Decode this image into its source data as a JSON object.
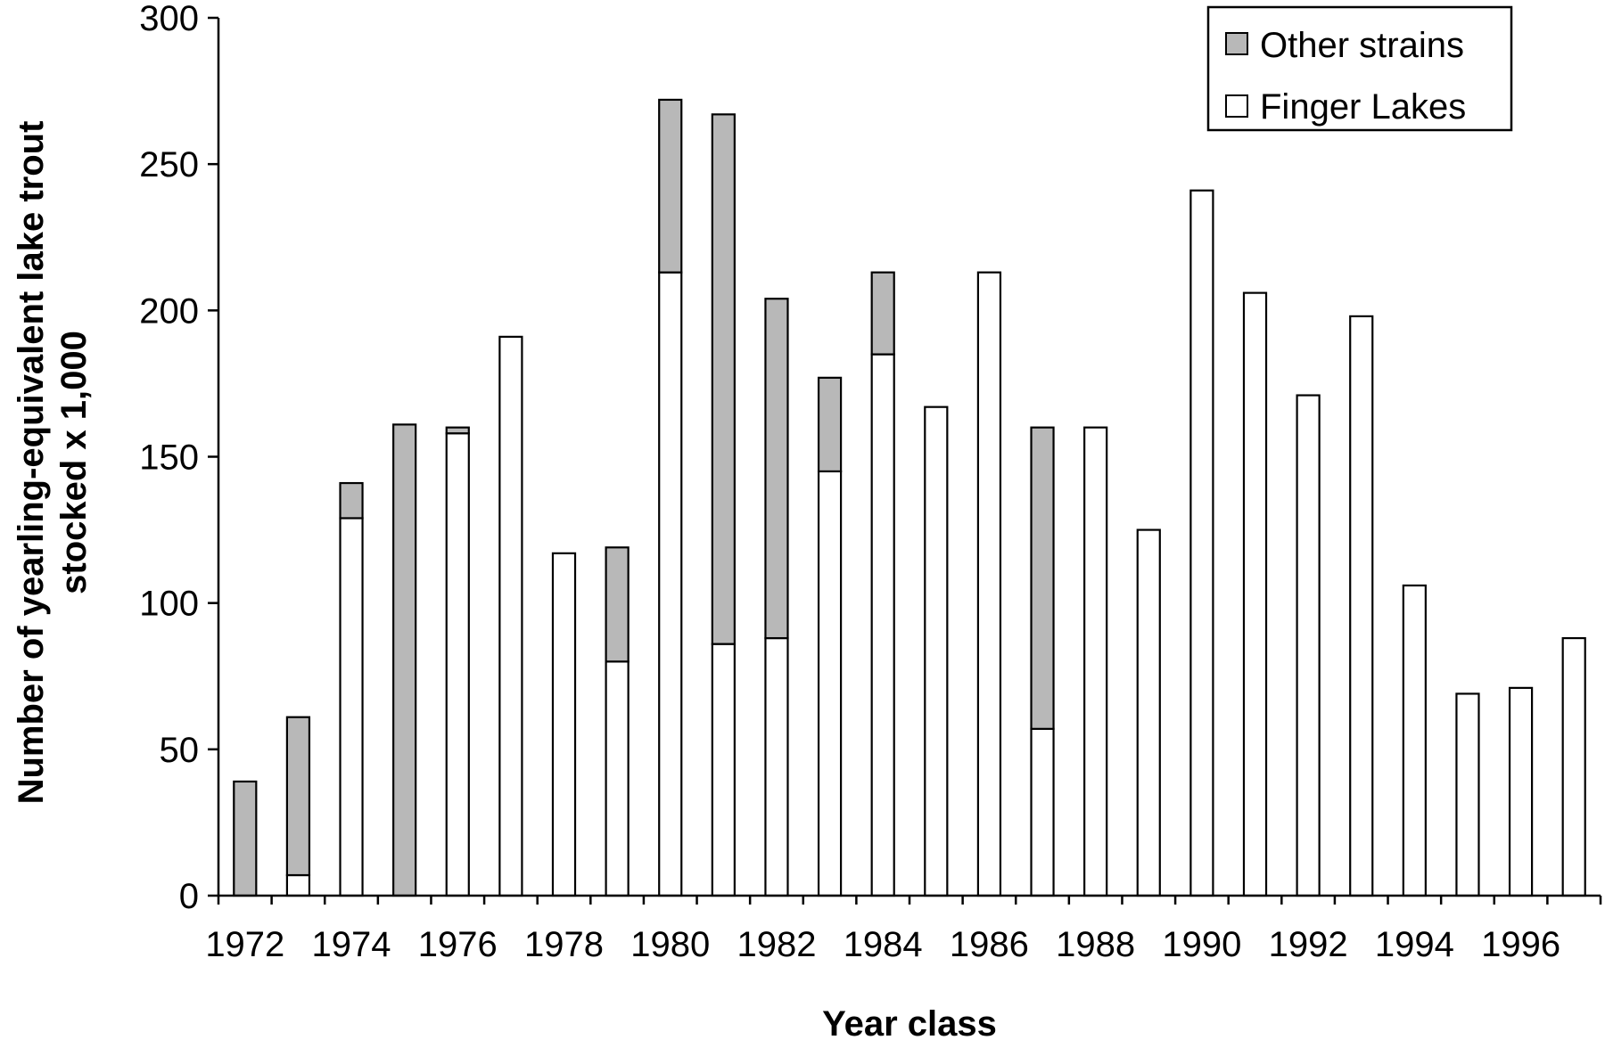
{
  "chart_data": {
    "type": "bar",
    "stacked": true,
    "title": "",
    "xlabel": "Year class",
    "ylabel_lines": [
      "Number of yearling-equivalent lake trout",
      "stocked x 1,000"
    ],
    "ylim": [
      0,
      300
    ],
    "yticks": [
      0,
      50,
      100,
      150,
      200,
      250,
      300
    ],
    "grid": false,
    "legend_position": "top-right",
    "categories": [
      "1972",
      "1973",
      "1974",
      "1975",
      "1976",
      "1977",
      "1978",
      "1979",
      "1980",
      "1981",
      "1982",
      "1983",
      "1984",
      "1985",
      "1986",
      "1987",
      "1988",
      "1989",
      "1990",
      "1991",
      "1992",
      "1993",
      "1994",
      "1995",
      "1996",
      "1997"
    ],
    "xtick_labels": [
      "1972",
      "1974",
      "1976",
      "1978",
      "1980",
      "1982",
      "1984",
      "1986",
      "1988",
      "1990",
      "1992",
      "1994",
      "1996"
    ],
    "series": [
      {
        "name": "Finger Lakes",
        "color": "#ffffff",
        "values": [
          0,
          7,
          129,
          0,
          158,
          191,
          117,
          80,
          213,
          86,
          88,
          145,
          185,
          167,
          213,
          57,
          160,
          125,
          241,
          206,
          171,
          198,
          106,
          69,
          71,
          88
        ]
      },
      {
        "name": "Other strains",
        "color": "#b8b8b8",
        "values": [
          39,
          54,
          12,
          161,
          2,
          0,
          0,
          39,
          59,
          181,
          116,
          32,
          28,
          0,
          0,
          103,
          0,
          0,
          0,
          0,
          0,
          0,
          0,
          0,
          0,
          0
        ]
      }
    ],
    "legend_order": [
      "Other strains",
      "Finger Lakes"
    ]
  }
}
